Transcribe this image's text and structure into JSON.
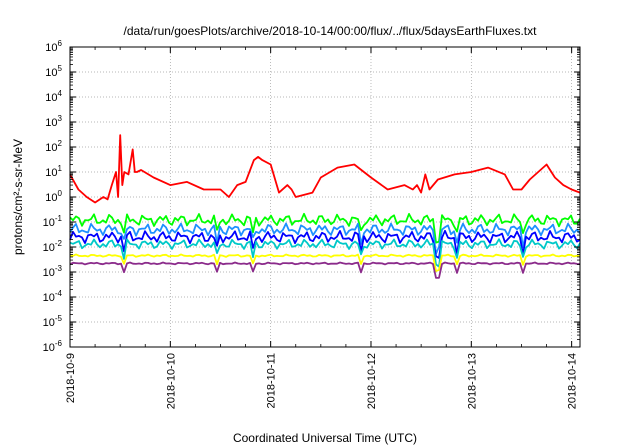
{
  "chart_data": {
    "type": "line",
    "title": "/data/run/goesPlots/archive/2018-10-14/00:00/flux/../flux/5daysEarthFluxes.txt",
    "xlabel": "Coordinated Universal Time (UTC)",
    "ylabel": "protons/cm²-s-sr-MeV",
    "y_scale": "log",
    "ylim": [
      1e-06,
      1000000.0
    ],
    "y_ticks": [
      {
        "value": 1e-06,
        "base": "10",
        "exp": "-6"
      },
      {
        "value": 1e-05,
        "base": "10",
        "exp": "-5"
      },
      {
        "value": 0.0001,
        "base": "10",
        "exp": "-4"
      },
      {
        "value": 0.001,
        "base": "10",
        "exp": "-3"
      },
      {
        "value": 0.01,
        "base": "10",
        "exp": "-2"
      },
      {
        "value": 0.1,
        "base": "10",
        "exp": "-1"
      },
      {
        "value": 1,
        "base": "10",
        "exp": "0"
      },
      {
        "value": 10,
        "base": "10",
        "exp": "1"
      },
      {
        "value": 100,
        "base": "10",
        "exp": "2"
      },
      {
        "value": 1000,
        "base": "10",
        "exp": "3"
      },
      {
        "value": 10000,
        "base": "10",
        "exp": "4"
      },
      {
        "value": 100000,
        "base": "10",
        "exp": "5"
      },
      {
        "value": 1000000,
        "base": "10",
        "exp": "6"
      }
    ],
    "xlim": [
      "2018-10-09",
      "2018-10-14 02:00"
    ],
    "x_ticks": [
      "2018-10-9",
      "2018-10-10",
      "2018-10-11",
      "2018-10-12",
      "2018-10-13",
      "2018-10-14"
    ],
    "grid": true,
    "legend": "none",
    "series": [
      {
        "color": "#ff0000",
        "x": [
          "2018-10-09 00:00",
          "2018-10-09 02:00",
          "2018-10-09 04:00",
          "2018-10-09 06:00",
          "2018-10-09 08:00",
          "2018-10-09 09:00",
          "2018-10-09 10:00",
          "2018-10-09 11:00",
          "2018-10-09 11:30",
          "2018-10-09 12:00",
          "2018-10-09 12:30",
          "2018-10-09 13:00",
          "2018-10-09 14:00",
          "2018-10-09 15:00",
          "2018-10-09 15:30",
          "2018-10-09 16:00",
          "2018-10-09 17:00",
          "2018-10-09 20:00",
          "2018-10-10 00:00",
          "2018-10-10 04:00",
          "2018-10-10 08:00",
          "2018-10-10 12:00",
          "2018-10-10 14:00",
          "2018-10-10 16:00",
          "2018-10-10 18:00",
          "2018-10-10 20:00",
          "2018-10-10 21:00",
          "2018-10-10 22:00",
          "2018-10-11 00:00",
          "2018-10-11 02:00",
          "2018-10-11 04:00",
          "2018-10-11 05:00",
          "2018-10-11 06:00",
          "2018-10-11 10:00",
          "2018-10-11 12:00",
          "2018-10-11 16:00",
          "2018-10-11 20:00",
          "2018-10-12 00:00",
          "2018-10-12 04:00",
          "2018-10-12 08:00",
          "2018-10-12 10:00",
          "2018-10-12 11:00",
          "2018-10-12 12:00",
          "2018-10-12 13:00",
          "2018-10-12 14:00",
          "2018-10-12 16:00",
          "2018-10-12 20:00",
          "2018-10-13 00:00",
          "2018-10-13 04:00",
          "2018-10-13 08:00",
          "2018-10-13 10:00",
          "2018-10-13 12:00",
          "2018-10-13 14:00",
          "2018-10-13 16:00",
          "2018-10-13 18:00",
          "2018-10-13 20:00",
          "2018-10-13 22:00",
          "2018-10-14 00:00",
          "2018-10-14 02:00"
        ],
        "y": [
          8,
          2,
          1,
          0.6,
          1,
          0.8,
          3,
          10,
          1,
          300,
          3,
          10,
          8,
          80,
          10,
          10,
          12,
          6,
          3,
          4,
          2,
          2,
          1,
          3,
          4,
          30,
          40,
          30,
          20,
          1.5,
          3,
          2,
          1,
          1.5,
          6,
          15,
          20,
          6,
          2,
          3,
          2,
          3,
          1.5,
          8,
          2,
          5,
          8,
          10,
          15,
          8,
          2,
          2,
          5,
          10,
          20,
          6,
          3,
          2,
          1.5
        ]
      },
      {
        "color": "#00ff00",
        "base": 0.12,
        "amp": 0.25
      },
      {
        "color": "#1e90ff",
        "base": 0.05,
        "amp": 0.25
      },
      {
        "color": "#0000ff",
        "base": 0.025,
        "amp": 0.25
      },
      {
        "color": "#00c8c8",
        "base": 0.013,
        "amp": 0.2
      },
      {
        "color": "#ffff00",
        "base": 0.0045,
        "amp": 0.05
      },
      {
        "color": "#8b2b8b",
        "base": 0.0022,
        "amp": 0.04
      }
    ]
  }
}
